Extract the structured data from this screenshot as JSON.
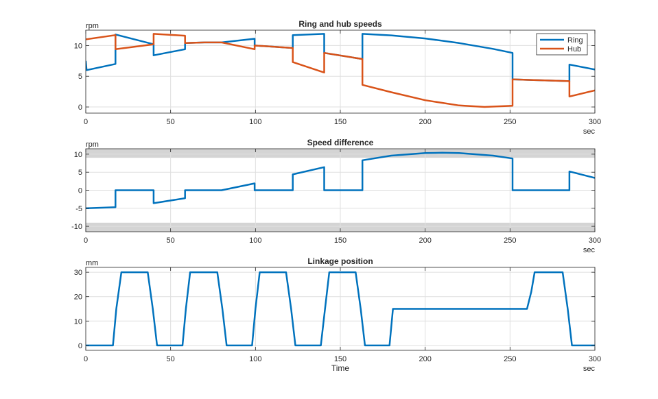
{
  "figure": {
    "colors": {
      "ring": "#0072BD",
      "hub": "#D95319",
      "band": "#d4d4d4",
      "grid": "#dfdfdf",
      "axis": "#262626"
    }
  },
  "chart_data": [
    {
      "type": "line",
      "title": "Ring and hub speeds",
      "ylabel": "rpm",
      "xlabel": "",
      "x_unit": "sec",
      "xlim": [
        0,
        300
      ],
      "ylim": [
        -1,
        12.5
      ],
      "xticks": [
        0,
        50,
        100,
        150,
        200,
        250,
        300
      ],
      "yticks": [
        0,
        5,
        10
      ],
      "legend": {
        "position": "top-right",
        "entries": [
          "Ring",
          "Hub"
        ]
      },
      "series": [
        {
          "name": "Ring",
          "points": [
            [
              0,
              7.5
            ],
            [
              0.5,
              6.0
            ],
            [
              17.5,
              7.0
            ],
            [
              17.5,
              11.8
            ],
            [
              40,
              10.2
            ],
            [
              40,
              8.4
            ],
            [
              58.5,
              9.4
            ],
            [
              58.5,
              10.4
            ],
            [
              70,
              10.5
            ],
            [
              80,
              10.5
            ],
            [
              99.5,
              11.1
            ],
            [
              99.5,
              10.0
            ],
            [
              122,
              9.6
            ],
            [
              122,
              11.7
            ],
            [
              140.5,
              11.9
            ],
            [
              140.5,
              8.8
            ],
            [
              163,
              7.8
            ],
            [
              163,
              11.9
            ],
            [
              180,
              11.65
            ],
            [
              200,
              11.15
            ],
            [
              220,
              10.4
            ],
            [
              240,
              9.45
            ],
            [
              251.5,
              8.8
            ],
            [
              251.5,
              4.5
            ],
            [
              285,
              4.2
            ],
            [
              285,
              6.9
            ],
            [
              300,
              6.1
            ]
          ]
        },
        {
          "name": "Hub",
          "points": [
            [
              0,
              11.0
            ],
            [
              17.5,
              11.7
            ],
            [
              17.5,
              9.4
            ],
            [
              40,
              10.2
            ],
            [
              40,
              11.9
            ],
            [
              58.5,
              11.6
            ],
            [
              58.5,
              10.4
            ],
            [
              70,
              10.5
            ],
            [
              80,
              10.5
            ],
            [
              99.5,
              9.4
            ],
            [
              99.5,
              10.0
            ],
            [
              122,
              9.6
            ],
            [
              122,
              7.3
            ],
            [
              140.5,
              5.6
            ],
            [
              140.5,
              8.8
            ],
            [
              163,
              7.8
            ],
            [
              163,
              3.6
            ],
            [
              180,
              2.4
            ],
            [
              200,
              1.1
            ],
            [
              220,
              0.25
            ],
            [
              235,
              0.0
            ],
            [
              251.5,
              0.2
            ],
            [
              251.5,
              4.5
            ],
            [
              285,
              4.2
            ],
            [
              285,
              1.7
            ],
            [
              300,
              2.7
            ]
          ]
        }
      ]
    },
    {
      "type": "line",
      "title": "Speed difference",
      "ylabel": "rpm",
      "xlabel": "",
      "x_unit": "sec",
      "xlim": [
        0,
        300
      ],
      "ylim": [
        -11.5,
        11.5
      ],
      "xticks": [
        0,
        50,
        100,
        150,
        200,
        250,
        300
      ],
      "yticks": [
        -10,
        -5,
        0,
        5,
        10
      ],
      "bands": [
        [
          9,
          11.5
        ],
        [
          -11.5,
          -9
        ]
      ],
      "series": [
        {
          "name": "Speed difference",
          "points": [
            [
              0,
              -5.0
            ],
            [
              17.5,
              -4.7
            ],
            [
              17.5,
              0
            ],
            [
              40,
              0
            ],
            [
              40,
              -3.6
            ],
            [
              58.5,
              -2.2
            ],
            [
              58.5,
              0
            ],
            [
              80,
              0
            ],
            [
              99.5,
              1.9
            ],
            [
              99.5,
              0
            ],
            [
              122,
              0
            ],
            [
              122,
              4.4
            ],
            [
              140.5,
              6.4
            ],
            [
              140.5,
              0
            ],
            [
              163,
              0
            ],
            [
              163,
              8.3
            ],
            [
              180,
              9.6
            ],
            [
              200,
              10.3
            ],
            [
              210,
              10.4
            ],
            [
              220,
              10.3
            ],
            [
              240,
              9.6
            ],
            [
              251.5,
              8.8
            ],
            [
              251.5,
              0
            ],
            [
              285,
              0
            ],
            [
              285,
              5.2
            ],
            [
              300,
              3.4
            ]
          ]
        }
      ]
    },
    {
      "type": "line",
      "title": "Linkage position",
      "ylabel": "mm",
      "xlabel": "Time",
      "x_unit": "sec",
      "xlim": [
        0,
        300
      ],
      "ylim": [
        -2,
        32
      ],
      "xticks": [
        0,
        50,
        100,
        150,
        200,
        250,
        300
      ],
      "yticks": [
        0,
        10,
        20,
        30
      ],
      "series": [
        {
          "name": "Linkage position",
          "points": [
            [
              0,
              0
            ],
            [
              16,
              0
            ],
            [
              18,
              15
            ],
            [
              21,
              30
            ],
            [
              36.5,
              30
            ],
            [
              39.5,
              15
            ],
            [
              42,
              0
            ],
            [
              57,
              0
            ],
            [
              59,
              15
            ],
            [
              61.5,
              30
            ],
            [
              77.5,
              30
            ],
            [
              80.5,
              15
            ],
            [
              83,
              0
            ],
            [
              98,
              0
            ],
            [
              100,
              15
            ],
            [
              102.5,
              30
            ],
            [
              118,
              30
            ],
            [
              121,
              15
            ],
            [
              123.5,
              0
            ],
            [
              138.5,
              0
            ],
            [
              141,
              15
            ],
            [
              143.5,
              30
            ],
            [
              159,
              30
            ],
            [
              162,
              15
            ],
            [
              164.5,
              0
            ],
            [
              179,
              0
            ],
            [
              181,
              15
            ],
            [
              260,
              15
            ],
            [
              262.5,
              22
            ],
            [
              264.5,
              30
            ],
            [
              281,
              30
            ],
            [
              284,
              15
            ],
            [
              286.5,
              0
            ],
            [
              300,
              0
            ]
          ]
        }
      ]
    }
  ]
}
